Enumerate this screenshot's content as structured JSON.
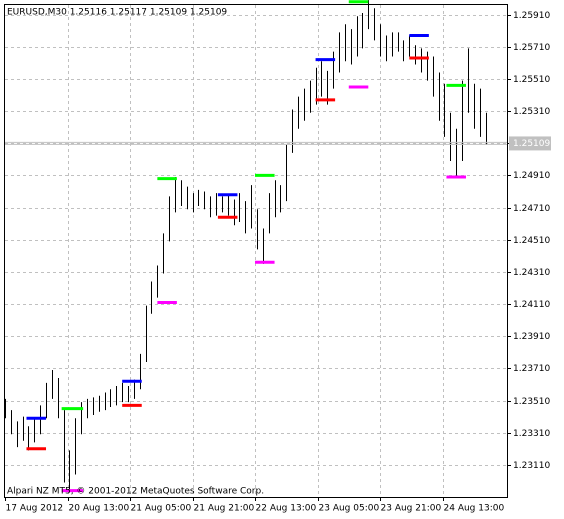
{
  "chart_data": {
    "type": "price-bars",
    "title": "EURUSD,M30  1.25116 1.25117 1.25109 1.25109",
    "footer": "Alpari NZ MT5, © 2001-2012 MetaQuotes Software Corp.",
    "bar_color": "#000000",
    "grid": true,
    "xlim": [
      0,
      257
    ],
    "xticks": [
      {
        "value": 0,
        "label": "17 Aug 2012"
      },
      {
        "value": 32,
        "label": "20 Aug 13:00"
      },
      {
        "value": 64,
        "label": "21 Aug 05:00"
      },
      {
        "value": 96,
        "label": "21 Aug 21:00"
      },
      {
        "value": 128,
        "label": "22 Aug 13:00"
      },
      {
        "value": 160,
        "label": "23 Aug 05:00"
      },
      {
        "value": 192,
        "label": "23 Aug 21:00"
      },
      {
        "value": 224,
        "label": "24 Aug 13:00"
      }
    ],
    "ylim": [
      1.2291,
      1.2597
    ],
    "yticks": [
      {
        "value": 1.2311,
        "label": "1.23110"
      },
      {
        "value": 1.2331,
        "label": "1.23310"
      },
      {
        "value": 1.2351,
        "label": "1.23510"
      },
      {
        "value": 1.2371,
        "label": "1.23710"
      },
      {
        "value": 1.2391,
        "label": "1.23910"
      },
      {
        "value": 1.2411,
        "label": "1.24110"
      },
      {
        "value": 1.2431,
        "label": "1.24310"
      },
      {
        "value": 1.2451,
        "label": "1.24510"
      },
      {
        "value": 1.2471,
        "label": "1.24710"
      },
      {
        "value": 1.2491,
        "label": "1.24910"
      },
      {
        "value": 1.2511,
        "label": "1.25110"
      },
      {
        "value": 1.2531,
        "label": "1.25310"
      },
      {
        "value": 1.2551,
        "label": "1.25510"
      },
      {
        "value": 1.2571,
        "label": "1.25710"
      },
      {
        "value": 1.2591,
        "label": "1.25910"
      }
    ],
    "last_price": 1.25109,
    "bars": {
      "x": [
        0,
        3,
        6,
        9,
        12,
        15,
        18,
        21,
        24,
        27,
        30,
        33,
        36,
        39,
        42,
        45,
        48,
        51,
        54,
        57,
        60,
        63,
        66,
        69,
        72,
        75,
        78,
        81,
        84,
        87,
        90,
        93,
        96,
        99,
        102,
        105,
        108,
        111,
        114,
        117,
        120,
        123,
        126,
        129,
        132,
        135,
        138,
        141,
        144,
        147,
        150,
        153,
        156,
        159,
        162,
        165,
        168,
        171,
        174,
        177,
        180,
        183,
        186,
        189,
        192,
        195,
        198,
        201,
        204,
        207,
        210,
        213,
        216,
        219,
        222,
        225,
        228,
        231,
        234,
        237,
        240,
        243,
        246
      ],
      "low": [
        1.234,
        1.233,
        1.2322,
        1.2326,
        1.232,
        1.2325,
        1.233,
        1.234,
        1.2352,
        1.234,
        1.23,
        1.2294,
        1.2305,
        1.233,
        1.234,
        1.2342,
        1.2344,
        1.2345,
        1.2347,
        1.2348,
        1.235,
        1.235,
        1.2352,
        1.2358,
        1.2375,
        1.2405,
        1.2415,
        1.243,
        1.245,
        1.2468,
        1.2472,
        1.247,
        1.2468,
        1.2472,
        1.247,
        1.2465,
        1.2466,
        1.2468,
        1.2466,
        1.246,
        1.2462,
        1.2455,
        1.2458,
        1.2445,
        1.2436,
        1.2455,
        1.2465,
        1.2468,
        1.2475,
        1.2505,
        1.252,
        1.2525,
        1.253,
        1.2535,
        1.254,
        1.2535,
        1.2545,
        1.2555,
        1.2562,
        1.256,
        1.2565,
        1.257,
        1.2582,
        1.2575,
        1.2565,
        1.2562,
        1.2565,
        1.2568,
        1.2562,
        1.2565,
        1.256,
        1.2555,
        1.255,
        1.254,
        1.2525,
        1.2515,
        1.25,
        1.249,
        1.25,
        1.253,
        1.252,
        1.2515,
        1.251
      ],
      "high": [
        1.2352,
        1.2345,
        1.2338,
        1.2341,
        1.2335,
        1.234,
        1.2348,
        1.2362,
        1.237,
        1.2365,
        1.2345,
        1.232,
        1.234,
        1.235,
        1.2352,
        1.2353,
        1.2354,
        1.2356,
        1.2358,
        1.236,
        1.2362,
        1.236,
        1.2364,
        1.238,
        1.241,
        1.2425,
        1.2435,
        1.2455,
        1.2478,
        1.249,
        1.2488,
        1.2484,
        1.248,
        1.2482,
        1.2481,
        1.2478,
        1.248,
        1.2478,
        1.2479,
        1.2476,
        1.248,
        1.2475,
        1.2485,
        1.247,
        1.2458,
        1.248,
        1.2488,
        1.2485,
        1.251,
        1.2532,
        1.254,
        1.2545,
        1.255,
        1.2558,
        1.2562,
        1.2556,
        1.2568,
        1.258,
        1.2585,
        1.2582,
        1.259,
        1.2592,
        1.26,
        1.2595,
        1.2585,
        1.2578,
        1.258,
        1.258,
        1.2575,
        1.2578,
        1.2572,
        1.257,
        1.2568,
        1.2565,
        1.2555,
        1.2548,
        1.253,
        1.252,
        1.255,
        1.257,
        1.2548,
        1.2545,
        1.253
      ]
    },
    "levels": [
      {
        "color": "#0000ff",
        "value": 1.234,
        "x0": 11,
        "x1": 21
      },
      {
        "color": "#ff0000",
        "value": 1.2321,
        "x0": 11,
        "x1": 21
      },
      {
        "color": "#00ff00",
        "value": 1.2346,
        "x0": 29,
        "x1": 40
      },
      {
        "color": "#ff00ff",
        "value": 1.2295,
        "x0": 29,
        "x1": 40
      },
      {
        "color": "#ff0000",
        "value": 1.2348,
        "x0": 60,
        "x1": 70
      },
      {
        "color": "#0000ff",
        "value": 1.2363,
        "x0": 60,
        "x1": 70
      },
      {
        "color": "#ff00ff",
        "value": 1.2412,
        "x0": 78,
        "x1": 88
      },
      {
        "color": "#00ff00",
        "value": 1.2489,
        "x0": 78,
        "x1": 88
      },
      {
        "color": "#0000ff",
        "value": 1.2479,
        "x0": 109,
        "x1": 119
      },
      {
        "color": "#ff0000",
        "value": 1.2465,
        "x0": 109,
        "x1": 119
      },
      {
        "color": "#00ff00",
        "value": 1.2491,
        "x0": 128,
        "x1": 138
      },
      {
        "color": "#ff00ff",
        "value": 1.2437,
        "x0": 128,
        "x1": 138
      },
      {
        "color": "#0000ff",
        "value": 1.2563,
        "x0": 159,
        "x1": 169
      },
      {
        "color": "#ff0000",
        "value": 1.2538,
        "x0": 159,
        "x1": 169
      },
      {
        "color": "#00ff00",
        "value": 1.2599,
        "x0": 176,
        "x1": 186
      },
      {
        "color": "#ff00ff",
        "value": 1.2546,
        "x0": 176,
        "x1": 186
      },
      {
        "color": "#0000ff",
        "value": 1.2578,
        "x0": 207,
        "x1": 217
      },
      {
        "color": "#ff0000",
        "value": 1.2564,
        "x0": 207,
        "x1": 217
      },
      {
        "color": "#00ff00",
        "value": 1.2547,
        "x0": 226,
        "x1": 236
      },
      {
        "color": "#ff00ff",
        "value": 1.249,
        "x0": 226,
        "x1": 236
      }
    ]
  }
}
